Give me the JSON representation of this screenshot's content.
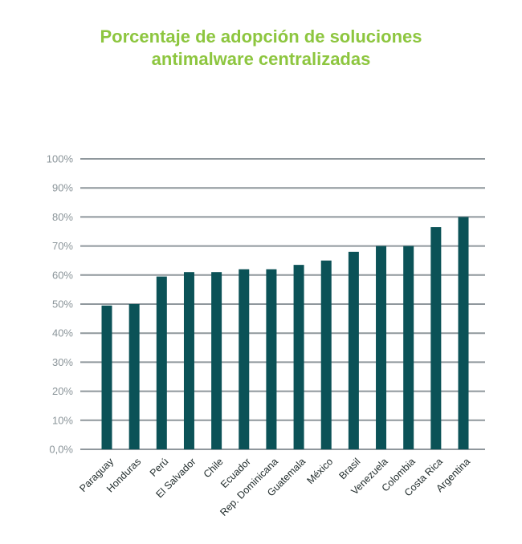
{
  "chart_data": {
    "type": "bar",
    "title_lines": [
      "Porcentaje de adopción de soluciones",
      "antimalware centralizadas"
    ],
    "categories": [
      "Paraguay",
      "Honduras",
      "Perú",
      "El Salvador",
      "Chile",
      "Ecuador",
      "Rep. Dominicana",
      "Guatemala",
      "México",
      "Brasil",
      "Venezuela",
      "Colombia",
      "Costa Rica",
      "Argentina"
    ],
    "values": [
      49.5,
      50,
      59.5,
      61,
      61,
      62,
      62,
      63.5,
      65,
      68,
      70,
      70,
      76.5,
      80
    ],
    "y_ticks": [
      {
        "value": 0,
        "label": "0,0%"
      },
      {
        "value": 10,
        "label": "10%"
      },
      {
        "value": 20,
        "label": "20%"
      },
      {
        "value": 30,
        "label": "30%"
      },
      {
        "value": 40,
        "label": "40%"
      },
      {
        "value": 50,
        "label": "50%"
      },
      {
        "value": 60,
        "label": "60%"
      },
      {
        "value": 70,
        "label": "70%"
      },
      {
        "value": 80,
        "label": "80%"
      },
      {
        "value": 90,
        "label": "90%"
      },
      {
        "value": 100,
        "label": "100%"
      }
    ],
    "ylim": [
      0,
      100
    ],
    "grid": true,
    "legend": "none"
  },
  "colors": {
    "title": "#8dc63f",
    "bar": "#0b5257",
    "grid": "#8f979c",
    "tick_text": "#8a9499",
    "category_text": "#1f2a2a"
  }
}
